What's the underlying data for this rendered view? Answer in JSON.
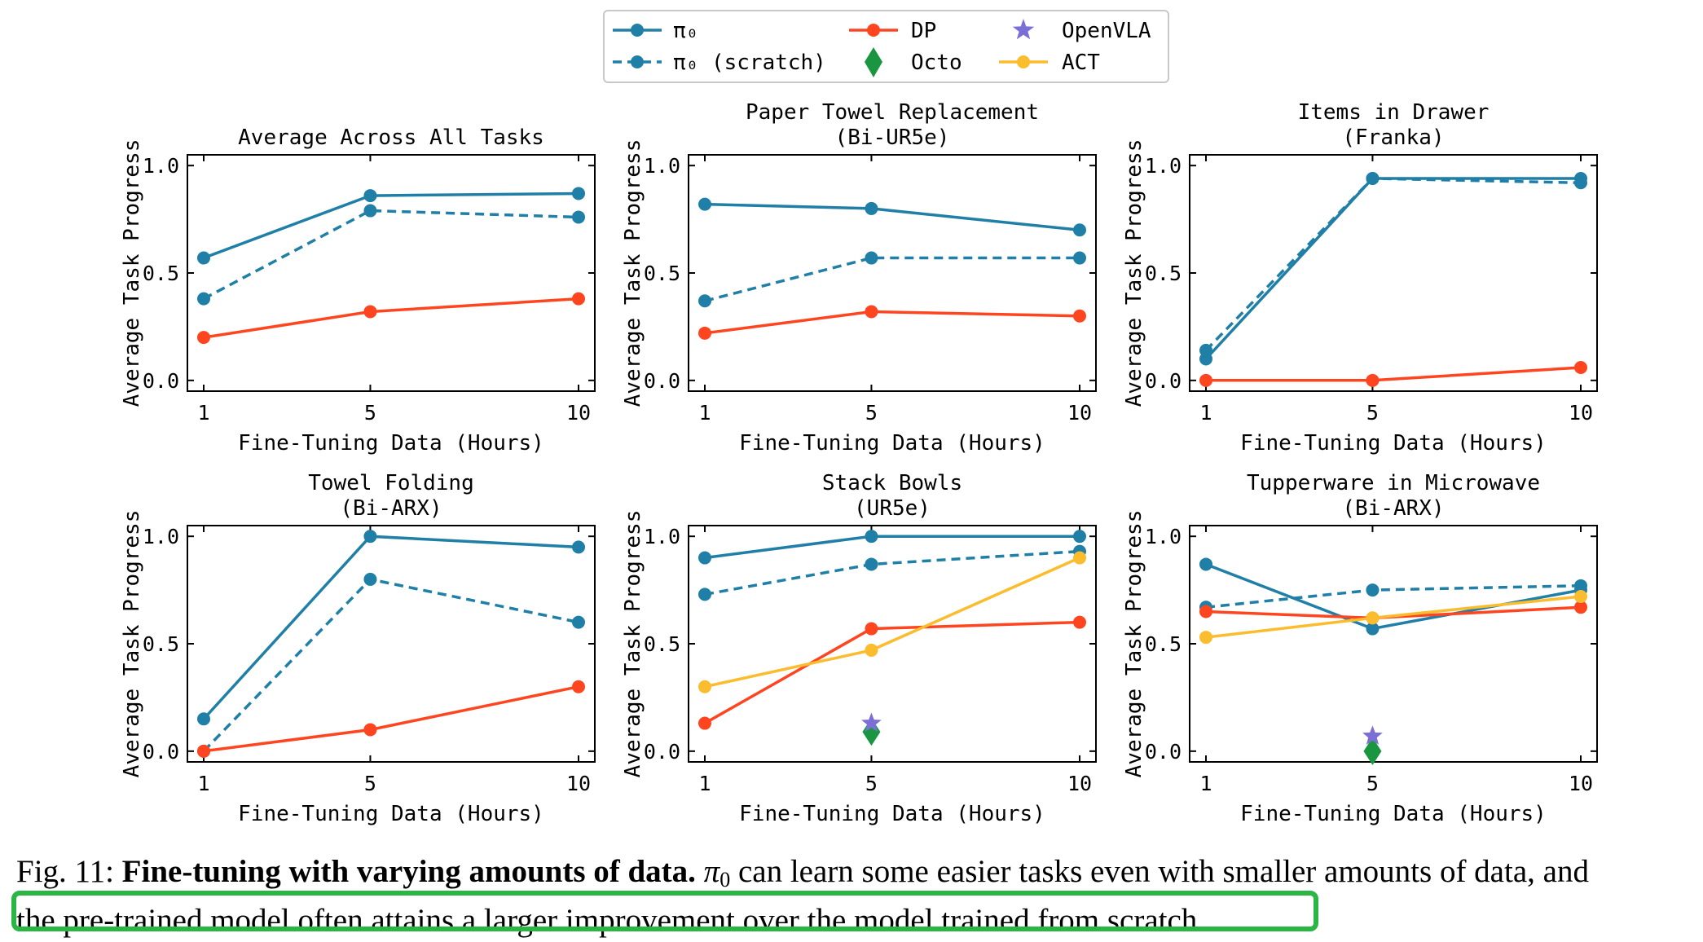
{
  "colors": {
    "pi0": "#1f7fa6",
    "dp": "#ff4520",
    "octo": "#1a9641",
    "openvla": "#7b6fd6",
    "act": "#fbbc2d"
  },
  "legend": {
    "pi0": "π₀",
    "pi0_scratch": "π₀ (scratch)",
    "dp": "DP",
    "octo": "Octo",
    "openvla": "OpenVLA",
    "act": "ACT"
  },
  "caption": {
    "fig_label": "Fig. 11:",
    "bold_title": "Fine-tuning with varying amounts of data.",
    "pi_symbol": "π",
    "pi_sub": "0",
    "text_part1": "can learn some easier tasks even with smaller amounts of data, and",
    "highlighted_text": "the pre-trained model often attains a larger improvement over the model trained from scratch."
  },
  "chart_data": [
    {
      "type": "line",
      "title": "Average Across All Tasks",
      "subtitle": "",
      "xlabel": "Fine-Tuning Data (Hours)",
      "ylabel": "Average Task Progress",
      "x": [
        1,
        5,
        10
      ],
      "xticks": [
        "1",
        "5",
        "10"
      ],
      "yticks": [
        "0.0",
        "0.5",
        "1.0"
      ],
      "ylim": [
        -0.05,
        1.05
      ],
      "series": [
        {
          "name": "π₀",
          "key": "pi0",
          "style": "solid",
          "values": [
            0.57,
            0.86,
            0.87
          ]
        },
        {
          "name": "π₀ (scratch)",
          "key": "pi0",
          "style": "dashed",
          "values": [
            0.38,
            0.79,
            0.76
          ]
        },
        {
          "name": "DP",
          "key": "dp",
          "style": "solid",
          "values": [
            0.2,
            0.32,
            0.38
          ]
        }
      ],
      "points": []
    },
    {
      "type": "line",
      "title": "Paper Towel Replacement",
      "subtitle": "(Bi-UR5e)",
      "xlabel": "Fine-Tuning Data (Hours)",
      "ylabel": "Average Task Progress",
      "x": [
        1,
        5,
        10
      ],
      "xticks": [
        "1",
        "5",
        "10"
      ],
      "yticks": [
        "0.0",
        "0.5",
        "1.0"
      ],
      "ylim": [
        -0.05,
        1.05
      ],
      "series": [
        {
          "name": "π₀",
          "key": "pi0",
          "style": "solid",
          "values": [
            0.82,
            0.8,
            0.7
          ]
        },
        {
          "name": "π₀ (scratch)",
          "key": "pi0",
          "style": "dashed",
          "values": [
            0.37,
            0.57,
            0.57
          ]
        },
        {
          "name": "DP",
          "key": "dp",
          "style": "solid",
          "values": [
            0.22,
            0.32,
            0.3
          ]
        }
      ],
      "points": []
    },
    {
      "type": "line",
      "title": "Items in Drawer",
      "subtitle": "(Franka)",
      "xlabel": "Fine-Tuning Data (Hours)",
      "ylabel": "Average Task Progress",
      "x": [
        1,
        5,
        10
      ],
      "xticks": [
        "1",
        "5",
        "10"
      ],
      "yticks": [
        "0.0",
        "0.5",
        "1.0"
      ],
      "ylim": [
        -0.05,
        1.05
      ],
      "series": [
        {
          "name": "π₀",
          "key": "pi0",
          "style": "solid",
          "values": [
            0.1,
            0.94,
            0.94
          ]
        },
        {
          "name": "π₀ (scratch)",
          "key": "pi0",
          "style": "dashed",
          "values": [
            0.14,
            0.94,
            0.92
          ]
        },
        {
          "name": "DP",
          "key": "dp",
          "style": "solid",
          "values": [
            0.0,
            0.0,
            0.06
          ]
        }
      ],
      "points": []
    },
    {
      "type": "line",
      "title": "Towel Folding",
      "subtitle": "(Bi-ARX)",
      "xlabel": "Fine-Tuning Data (Hours)",
      "ylabel": "Average Task Progress",
      "x": [
        1,
        5,
        10
      ],
      "xticks": [
        "1",
        "5",
        "10"
      ],
      "yticks": [
        "0.0",
        "0.5",
        "1.0"
      ],
      "ylim": [
        -0.05,
        1.05
      ],
      "series": [
        {
          "name": "π₀",
          "key": "pi0",
          "style": "solid",
          "values": [
            0.15,
            1.0,
            0.95
          ]
        },
        {
          "name": "π₀ (scratch)",
          "key": "pi0",
          "style": "dashed",
          "values": [
            0.0,
            0.8,
            0.6
          ]
        },
        {
          "name": "DP",
          "key": "dp",
          "style": "solid",
          "values": [
            0.0,
            0.1,
            0.3
          ]
        }
      ],
      "points": []
    },
    {
      "type": "line",
      "title": "Stack Bowls",
      "subtitle": "(UR5e)",
      "xlabel": "Fine-Tuning Data (Hours)",
      "ylabel": "Average Task Progress",
      "x": [
        1,
        5,
        10
      ],
      "xticks": [
        "1",
        "5",
        "10"
      ],
      "yticks": [
        "0.0",
        "0.5",
        "1.0"
      ],
      "ylim": [
        -0.05,
        1.05
      ],
      "series": [
        {
          "name": "π₀",
          "key": "pi0",
          "style": "solid",
          "values": [
            0.9,
            1.0,
            1.0
          ]
        },
        {
          "name": "π₀ (scratch)",
          "key": "pi0",
          "style": "dashed",
          "values": [
            0.73,
            0.87,
            0.93
          ]
        },
        {
          "name": "DP",
          "key": "dp",
          "style": "solid",
          "values": [
            0.13,
            0.57,
            0.6
          ]
        },
        {
          "name": "ACT",
          "key": "act",
          "style": "solid",
          "values": [
            0.3,
            0.47,
            0.9
          ]
        }
      ],
      "points": [
        {
          "name": "OpenVLA",
          "key": "openvla",
          "marker": "star",
          "x": 5,
          "y": 0.13
        },
        {
          "name": "Octo",
          "key": "octo",
          "marker": "diamond",
          "x": 5,
          "y": 0.09
        }
      ]
    },
    {
      "type": "line",
      "title": "Tupperware in Microwave",
      "subtitle": "(Bi-ARX)",
      "xlabel": "Fine-Tuning Data (Hours)",
      "ylabel": "Average Task Progress",
      "x": [
        1,
        5,
        10
      ],
      "xticks": [
        "1",
        "5",
        "10"
      ],
      "yticks": [
        "0.0",
        "0.5",
        "1.0"
      ],
      "ylim": [
        -0.05,
        1.05
      ],
      "series": [
        {
          "name": "π₀",
          "key": "pi0",
          "style": "solid",
          "values": [
            0.87,
            0.57,
            0.75
          ]
        },
        {
          "name": "π₀ (scratch)",
          "key": "pi0",
          "style": "dashed",
          "values": [
            0.67,
            0.75,
            0.77
          ]
        },
        {
          "name": "DP",
          "key": "dp",
          "style": "solid",
          "values": [
            0.65,
            0.62,
            0.67
          ]
        },
        {
          "name": "ACT",
          "key": "act",
          "style": "solid",
          "values": [
            0.53,
            0.62,
            0.72
          ]
        }
      ],
      "points": [
        {
          "name": "OpenVLA",
          "key": "openvla",
          "marker": "star",
          "x": 5,
          "y": 0.07
        },
        {
          "name": "Octo",
          "key": "octo",
          "marker": "diamond",
          "x": 5,
          "y": 0.0
        }
      ]
    }
  ]
}
